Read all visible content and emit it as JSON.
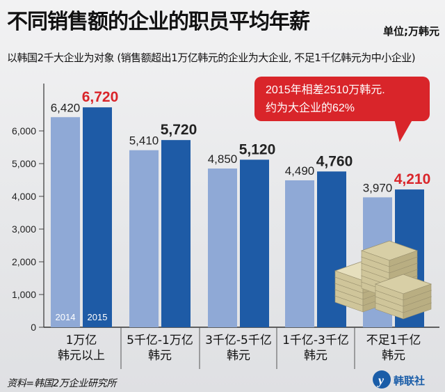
{
  "title": "不同销售额的企业的职员平均年薪",
  "unit_label": "单位;万韩元",
  "subtitle": "以韩国2千大企业为对象 (销售额超出1万亿韩元的企业为大企业, 不足1千亿韩元为中小企业)",
  "callout": {
    "line1": "2015年相差2510万韩元.",
    "line2": "约为大企业的62%"
  },
  "source": "资料=韩国2万企业研究所",
  "logo_text": "韩联社",
  "colors": {
    "series_2014": "#8fa9d6",
    "series_2015": "#1e5ba6",
    "highlight_label": "#d9252a",
    "callout_bg": "#d9252a"
  },
  "chart_data": {
    "type": "bar",
    "title": "不同销售额的企业的职员平均年薪",
    "ylabel": "",
    "ylim": [
      0,
      7000
    ],
    "yticks": [
      "0",
      "1,000",
      "2,000",
      "3,000",
      "4,000",
      "5,000",
      "6,000"
    ],
    "ytick_values": [
      0,
      1000,
      2000,
      3000,
      4000,
      5000,
      6000
    ],
    "grid": false,
    "categories": [
      [
        "1万亿",
        "韩元以上"
      ],
      [
        "5千亿-1万亿",
        "韩元"
      ],
      [
        "3千亿-5千亿",
        "韩元"
      ],
      [
        "1千亿-3千亿",
        "韩元"
      ],
      [
        "不足1千亿",
        "韩元"
      ]
    ],
    "series": [
      {
        "name": "2014",
        "values": [
          6420,
          5410,
          4850,
          4490,
          3970
        ],
        "labels": [
          "6,420",
          "5,410",
          "4,850",
          "4,490",
          "3,970"
        ]
      },
      {
        "name": "2015",
        "values": [
          6720,
          5720,
          5120,
          4760,
          4210
        ],
        "labels": [
          "6,720",
          "5,720",
          "5,120",
          "4,760",
          "4,210"
        ]
      }
    ],
    "highlighted_labels": [
      [
        1,
        0
      ],
      [
        1,
        4
      ]
    ]
  }
}
